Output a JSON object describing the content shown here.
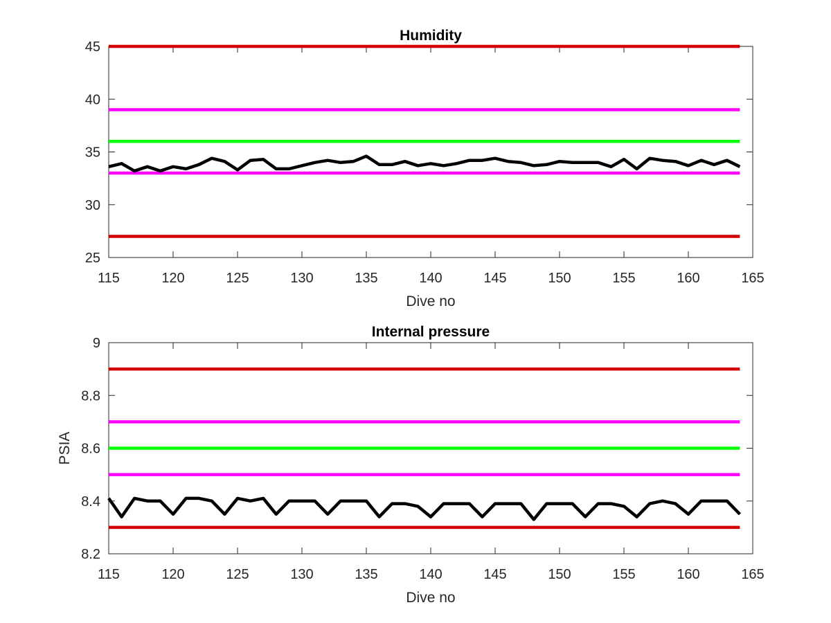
{
  "chart_data": [
    {
      "type": "line",
      "title": "Humidity",
      "xlabel": "Dive no",
      "ylabel": "",
      "xlim": [
        115,
        165
      ],
      "ylim": [
        25,
        45
      ],
      "xticks": [
        "115",
        "120",
        "125",
        "130",
        "135",
        "140",
        "145",
        "150",
        "155",
        "160",
        "165"
      ],
      "yticks": [
        "25",
        "30",
        "35",
        "40",
        "45"
      ],
      "grid": false,
      "threshold_lines": [
        {
          "y": 45,
          "color": "#d40000"
        },
        {
          "y": 39,
          "color": "#ff00ff"
        },
        {
          "y": 36,
          "color": "#00ff00"
        },
        {
          "y": 33,
          "color": "#ff00ff"
        },
        {
          "y": 27,
          "color": "#d40000"
        }
      ],
      "series": [
        {
          "color": "#000000",
          "x": [
            115,
            116,
            117,
            118,
            119,
            120,
            121,
            122,
            123,
            124,
            125,
            126,
            127,
            128,
            129,
            130,
            131,
            132,
            133,
            134,
            135,
            136,
            137,
            138,
            139,
            140,
            141,
            142,
            143,
            144,
            145,
            146,
            147,
            148,
            149,
            150,
            151,
            152,
            153,
            154,
            155,
            156,
            157,
            158,
            159,
            160,
            161,
            162,
            163,
            164
          ],
          "y": [
            33.6,
            33.9,
            33.2,
            33.6,
            33.2,
            33.6,
            33.4,
            33.8,
            34.4,
            34.1,
            33.3,
            34.2,
            34.3,
            33.4,
            33.4,
            33.7,
            34.0,
            34.2,
            34.0,
            34.1,
            34.6,
            33.8,
            33.8,
            34.1,
            33.7,
            33.9,
            33.7,
            33.9,
            34.2,
            34.2,
            34.4,
            34.1,
            34.0,
            33.7,
            33.8,
            34.1,
            34.0,
            34.0,
            34.0,
            33.6,
            34.3,
            33.4,
            34.4,
            34.2,
            34.1,
            33.7,
            34.2,
            33.8,
            34.2,
            33.6
          ]
        }
      ]
    },
    {
      "type": "line",
      "title": "Internal pressure",
      "xlabel": "Dive no",
      "ylabel": "PSIA",
      "xlim": [
        115,
        165
      ],
      "ylim": [
        8.2,
        9
      ],
      "xticks": [
        "115",
        "120",
        "125",
        "130",
        "135",
        "140",
        "145",
        "150",
        "155",
        "160",
        "165"
      ],
      "yticks": [
        "8.2",
        "8.4",
        "8.6",
        "8.8",
        "9"
      ],
      "grid": false,
      "threshold_lines": [
        {
          "y": 8.9,
          "color": "#d40000"
        },
        {
          "y": 8.7,
          "color": "#ff00ff"
        },
        {
          "y": 8.6,
          "color": "#00ff00"
        },
        {
          "y": 8.5,
          "color": "#ff00ff"
        },
        {
          "y": 8.3,
          "color": "#d40000"
        }
      ],
      "series": [
        {
          "color": "#000000",
          "x": [
            115,
            116,
            117,
            118,
            119,
            120,
            121,
            122,
            123,
            124,
            125,
            126,
            127,
            128,
            129,
            130,
            131,
            132,
            133,
            134,
            135,
            136,
            137,
            138,
            139,
            140,
            141,
            142,
            143,
            144,
            145,
            146,
            147,
            148,
            149,
            150,
            151,
            152,
            153,
            154,
            155,
            156,
            157,
            158,
            159,
            160,
            161,
            162,
            163,
            164
          ],
          "y": [
            8.41,
            8.34,
            8.41,
            8.4,
            8.4,
            8.35,
            8.41,
            8.41,
            8.4,
            8.35,
            8.41,
            8.4,
            8.41,
            8.35,
            8.4,
            8.4,
            8.4,
            8.35,
            8.4,
            8.4,
            8.4,
            8.34,
            8.39,
            8.39,
            8.38,
            8.34,
            8.39,
            8.39,
            8.39,
            8.34,
            8.39,
            8.39,
            8.39,
            8.33,
            8.39,
            8.39,
            8.39,
            8.34,
            8.39,
            8.39,
            8.38,
            8.34,
            8.39,
            8.4,
            8.39,
            8.35,
            8.4,
            8.4,
            8.4,
            8.35
          ]
        }
      ]
    }
  ]
}
